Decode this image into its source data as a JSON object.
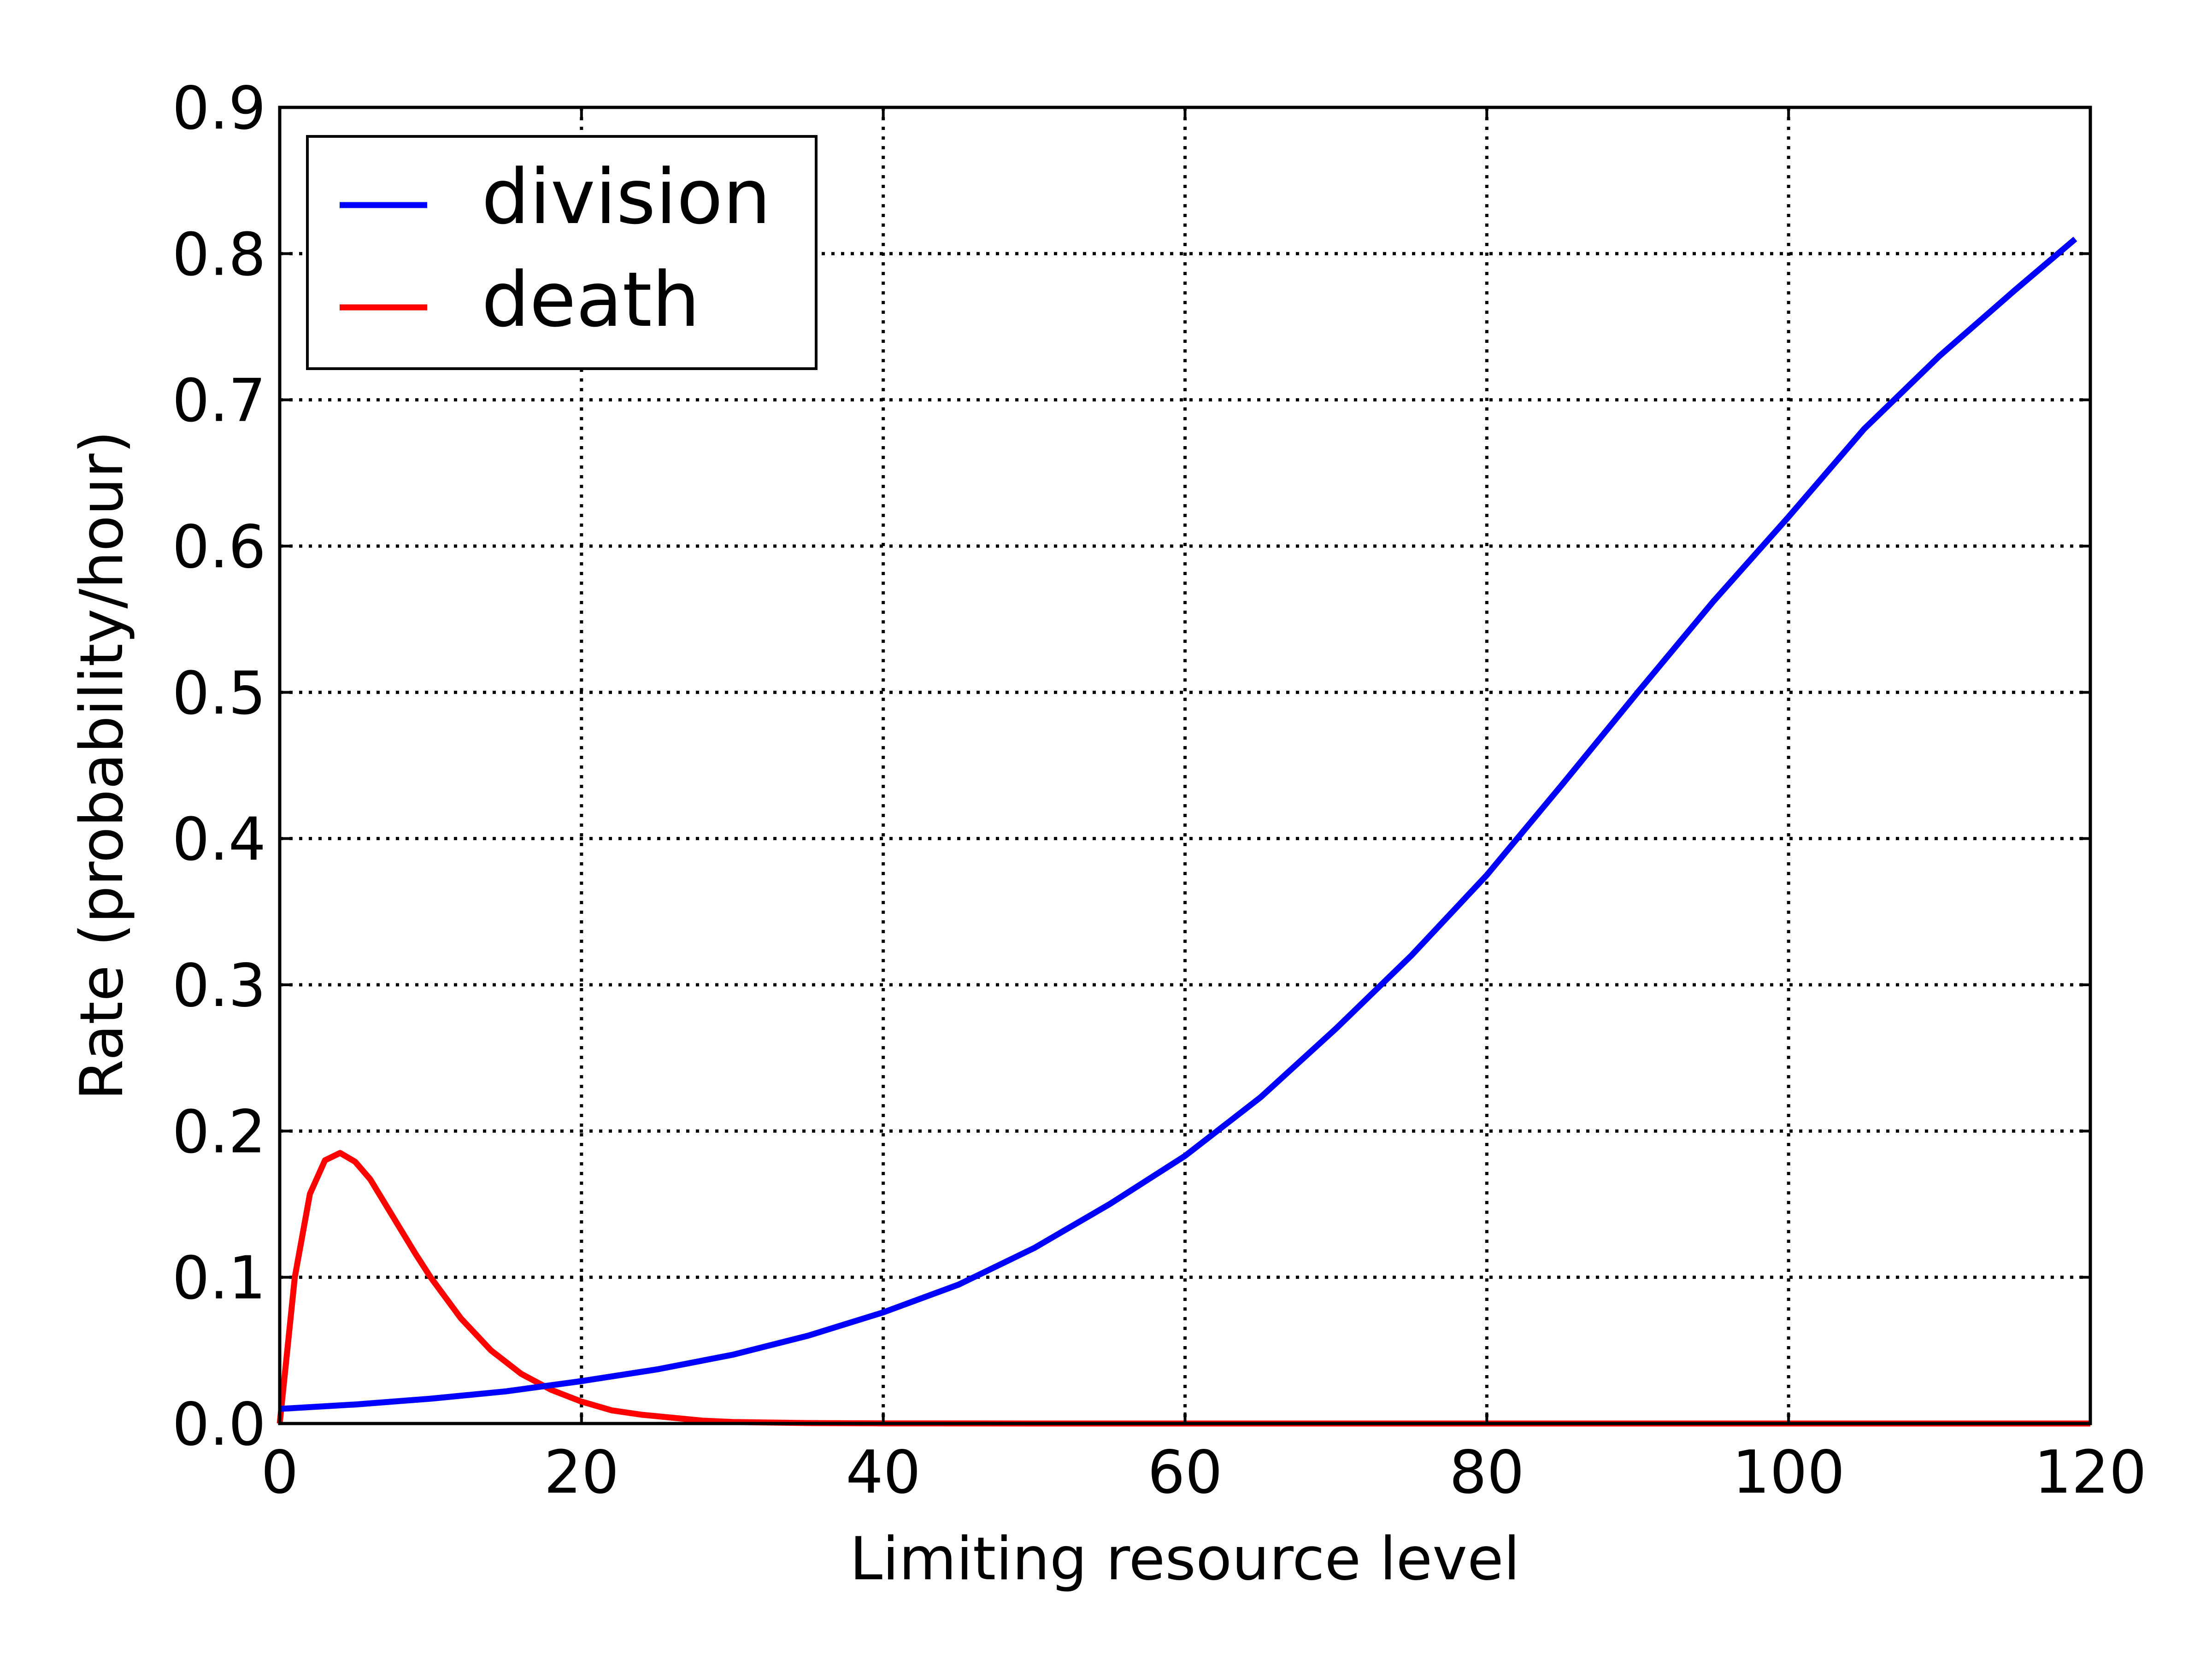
{
  "chart_data": {
    "type": "line",
    "title": "",
    "xlabel": "Limiting resource level",
    "ylabel": "Rate (probability/hour)",
    "xlim": [
      0,
      120
    ],
    "ylim": [
      0,
      0.9
    ],
    "xticks": [
      0,
      20,
      40,
      60,
      80,
      100,
      120
    ],
    "yticks": [
      0.0,
      0.1,
      0.2,
      0.3,
      0.4,
      0.5,
      0.6,
      0.7,
      0.8,
      0.9
    ],
    "xtick_labels": [
      "0",
      "20",
      "40",
      "60",
      "80",
      "100",
      "120"
    ],
    "ytick_labels": [
      "0.0",
      "0.1",
      "0.2",
      "0.3",
      "0.4",
      "0.5",
      "0.6",
      "0.7",
      "0.8",
      "0.9"
    ],
    "grid": true,
    "grid_style": "dotted",
    "legend": "top-left",
    "series": [
      {
        "name": "division",
        "color": "#0000ff",
        "x": [
          0,
          5,
          10,
          15,
          20,
          25,
          30,
          35,
          40,
          45,
          50,
          55,
          60,
          65,
          70,
          75,
          80,
          85,
          90,
          95,
          100,
          105,
          110,
          115,
          119
        ],
        "y": [
          0.01,
          0.013,
          0.017,
          0.022,
          0.029,
          0.037,
          0.047,
          0.06,
          0.076,
          0.095,
          0.12,
          0.15,
          0.183,
          0.223,
          0.27,
          0.32,
          0.375,
          0.437,
          0.5,
          0.562,
          0.62,
          0.68,
          0.73,
          0.775,
          0.81
        ]
      },
      {
        "name": "death",
        "color": "#ff0000",
        "x": [
          0,
          0.5,
          1,
          2,
          3,
          4,
          5,
          6,
          7,
          8,
          9,
          10,
          12,
          14,
          16,
          18,
          20,
          22,
          24,
          26,
          28,
          30,
          35,
          40,
          50,
          60,
          80,
          100,
          120
        ],
        "y": [
          0.0,
          0.05,
          0.1,
          0.157,
          0.18,
          0.185,
          0.179,
          0.167,
          0.15,
          0.133,
          0.116,
          0.1,
          0.072,
          0.05,
          0.034,
          0.023,
          0.015,
          0.009,
          0.006,
          0.004,
          0.002,
          0.001,
          0.0003,
          0.0001,
          0.0,
          0.0,
          0.0,
          0.0,
          0.0
        ]
      }
    ]
  }
}
